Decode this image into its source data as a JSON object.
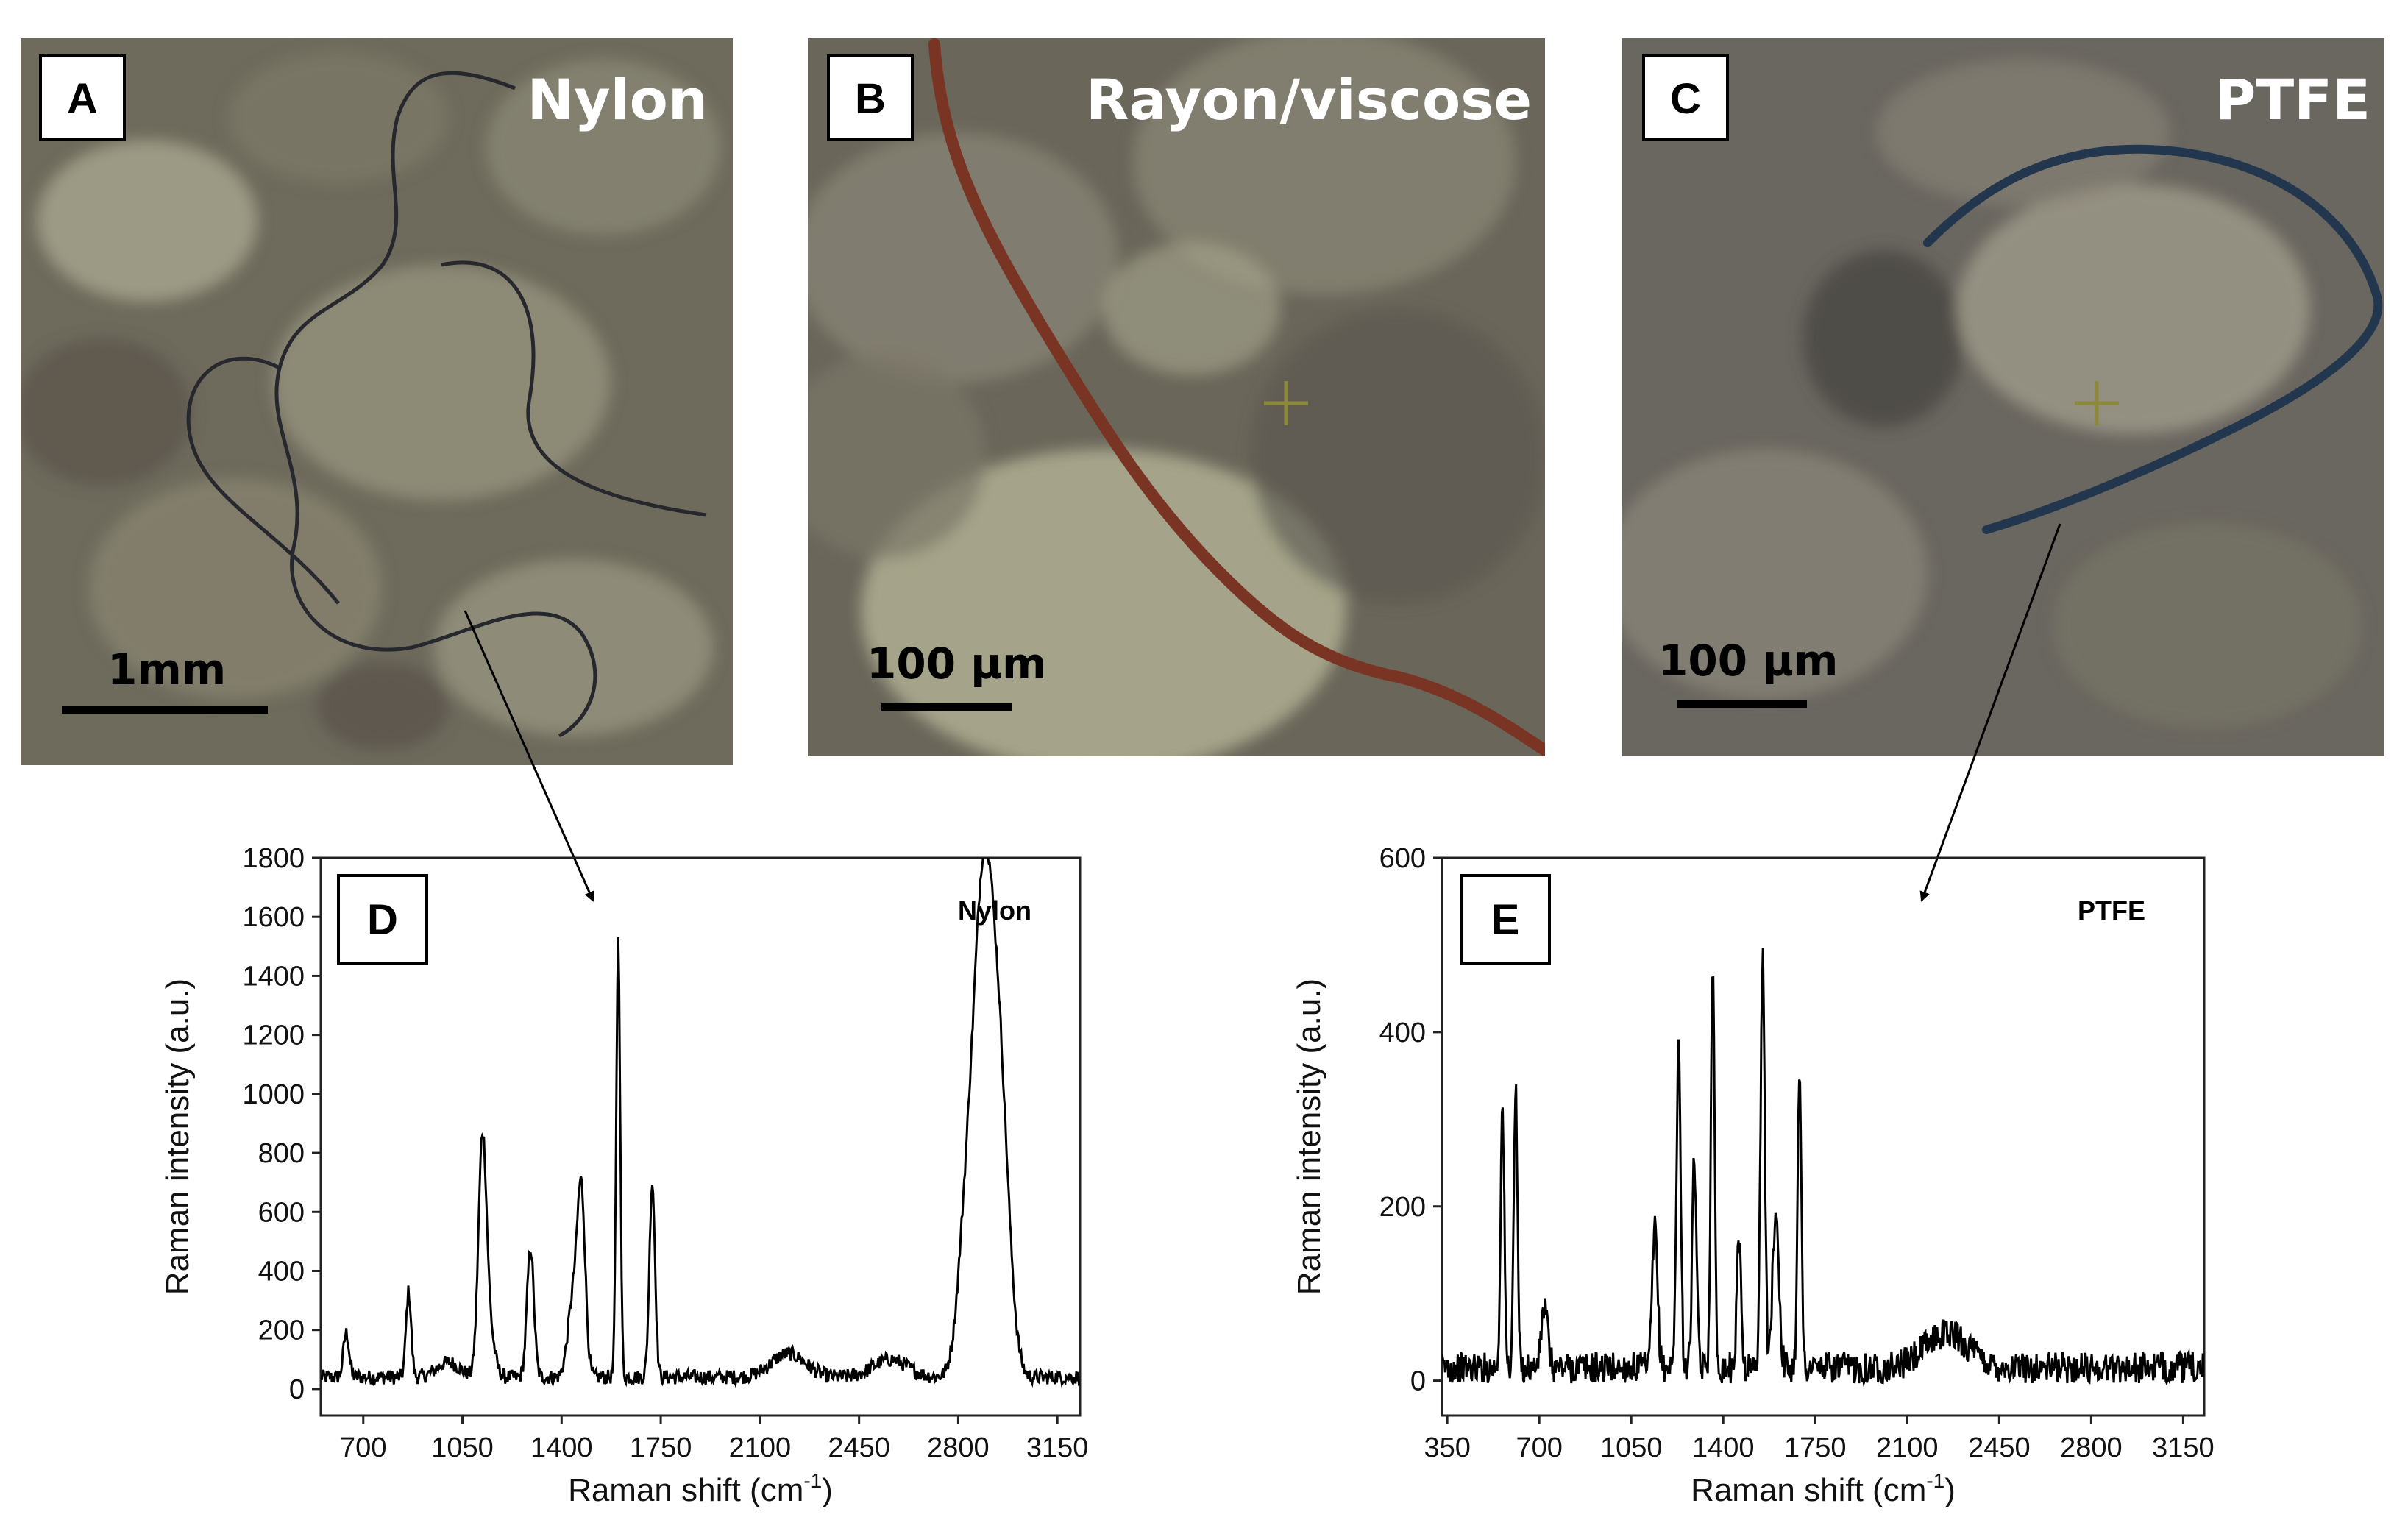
{
  "photos": [
    {
      "letter": "A",
      "label": "Nylon",
      "scale": "1mm",
      "colors": {
        "base": "#6e6a5c",
        "light": "#a8a68e",
        "fiber": "#26282e"
      }
    },
    {
      "letter": "B",
      "label": "Rayon/viscose",
      "scale": "100 µm",
      "colors": {
        "base": "#6a665a",
        "light": "#b4b496",
        "fiber": "#7a3424"
      }
    },
    {
      "letter": "C",
      "label": "PTFE",
      "scale": "100 µm",
      "colors": {
        "base": "#6a6660",
        "light": "#a6a290",
        "fiber": "#22364e"
      }
    }
  ],
  "chart_data": [
    {
      "panel": "D",
      "type": "line",
      "name": "Nylon",
      "xlabel": "Raman shift (cm",
      "xlabel_sup": "-1",
      "xlabel_close": ")",
      "ylabel": "Raman intensity (a.u.)",
      "xlim": [
        550,
        3230
      ],
      "ylim": [
        -90,
        1800
      ],
      "xticks": [
        700,
        1050,
        1400,
        1750,
        2100,
        2450,
        2800,
        3150
      ],
      "yticks": [
        0,
        200,
        400,
        600,
        800,
        1000,
        1200,
        1400,
        1600,
        1800
      ],
      "peaks": [
        [
          640,
          150,
          10
        ],
        [
          860,
          290,
          9
        ],
        [
          1000,
          50,
          40
        ],
        [
          1120,
          720,
          14
        ],
        [
          1140,
          180,
          20
        ],
        [
          1290,
          440,
          12
        ],
        [
          1440,
          260,
          18
        ],
        [
          1470,
          600,
          14
        ],
        [
          1600,
          1480,
          7
        ],
        [
          1720,
          660,
          10
        ],
        [
          2200,
          80,
          60
        ],
        [
          2560,
          60,
          60
        ],
        [
          2830,
          520,
          30
        ],
        [
          2880,
          1020,
          30
        ],
        [
          2920,
          1050,
          35
        ],
        [
          2960,
          420,
          30
        ]
      ],
      "baseline": 40,
      "noise": 25,
      "color": "#000000"
    },
    {
      "panel": "E",
      "type": "line",
      "name": "PTFE",
      "xlabel": "Raman shift (cm",
      "xlabel_sup": "-1",
      "xlabel_close": ")",
      "ylabel": "Raman intensity (a.u.)",
      "xlim": [
        330,
        3230
      ],
      "ylim": [
        -40,
        600
      ],
      "xticks": [
        350,
        700,
        1050,
        1400,
        1750,
        2100,
        2450,
        2800,
        3150
      ],
      "yticks": [
        0,
        200,
        400,
        600
      ],
      "peaks": [
        [
          560,
          300,
          7
        ],
        [
          610,
          320,
          7
        ],
        [
          720,
          70,
          12
        ],
        [
          1140,
          160,
          10
        ],
        [
          1230,
          370,
          8
        ],
        [
          1290,
          240,
          8
        ],
        [
          1360,
          470,
          7
        ],
        [
          1460,
          150,
          8
        ],
        [
          1550,
          470,
          8
        ],
        [
          1600,
          180,
          12
        ],
        [
          1690,
          350,
          7
        ],
        [
          2250,
          40,
          80
        ]
      ],
      "baseline": 15,
      "noise": 18,
      "color": "#000000"
    }
  ]
}
